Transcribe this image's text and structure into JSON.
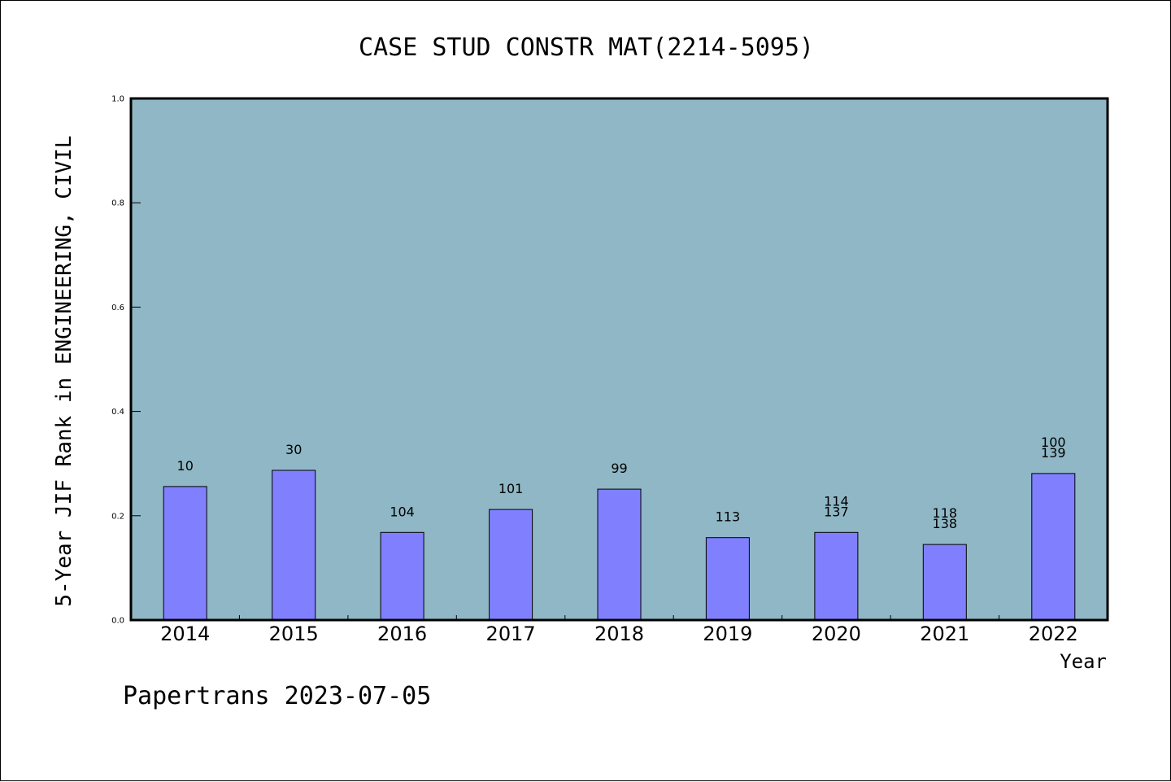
{
  "chart_data": {
    "type": "bar",
    "title": "CASE STUD CONSTR MAT(2214-5095)",
    "xlabel": "Year",
    "ylabel": "5-Year JIF Rank in ENGINEERING, CIVIL",
    "categories": [
      "2014",
      "2015",
      "2016",
      "2017",
      "2018",
      "2019",
      "2020",
      "2021",
      "2022"
    ],
    "values": [
      0.256,
      0.287,
      0.168,
      0.212,
      0.251,
      0.158,
      0.168,
      0.145,
      0.281
    ],
    "bar_labels": [
      [
        "10"
      ],
      [
        "30"
      ],
      [
        "104"
      ],
      [
        "101"
      ],
      [
        "99"
      ],
      [
        "113"
      ],
      [
        "114",
        "137"
      ],
      [
        "118",
        "138"
      ],
      [
        "100",
        "139"
      ]
    ],
    "ylim": [
      0,
      1.0
    ],
    "yticks": [
      "0.0",
      "0.2",
      "0.4",
      "0.6",
      "0.8",
      "1.0"
    ],
    "grid": false,
    "legend": "none"
  },
  "footer": {
    "text": "Papertrans 2023-07-05"
  },
  "colors": {
    "plot_background": "#8fb7c5",
    "bar_fill": "#8080ff",
    "bar_stroke": "#000000",
    "axis": "#000000"
  }
}
